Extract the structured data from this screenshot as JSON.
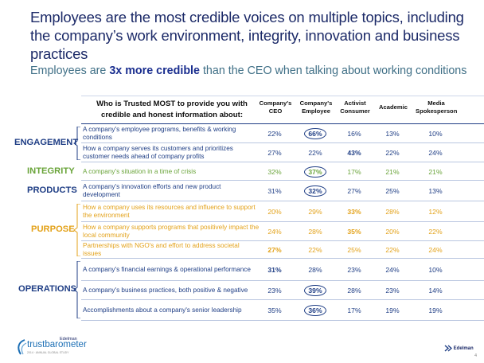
{
  "title": "Employees are the most credible voices on multiple topics, including the company’s work environment, integrity, innovation and business practices",
  "subtitle": {
    "before": "Employees are ",
    "highlight": "3x more credible",
    "after": " than the CEO when talking about working conditions"
  },
  "table": {
    "question": "Who is Trusted MOST to provide you with credible and honest information about:",
    "columns": [
      "Company's CEO",
      "Company's Employee",
      "Activist Consumer",
      "Academic",
      "Media Spokesperson"
    ],
    "rows": [
      {
        "topic": "A company's employee programs, benefits & working conditions",
        "values": [
          "22%",
          "66%",
          "16%",
          "13%",
          "10%"
        ],
        "circled": 1,
        "bold": [
          1
        ]
      },
      {
        "topic": "How a company serves its customers and prioritizes customer needs ahead of  company profits",
        "values": [
          "27%",
          "22%",
          "43%",
          "22%",
          "24%"
        ],
        "circled": -1,
        "bold": [
          2
        ]
      },
      {
        "topic": "A company's situation in a time of crisis",
        "values": [
          "32%",
          "37%",
          "17%",
          "21%",
          "21%"
        ],
        "circled": 1,
        "bold": [
          1
        ]
      },
      {
        "topic": "A company's innovation efforts and new product development",
        "values": [
          "31%",
          "32%",
          "27%",
          "25%",
          "13%"
        ],
        "circled": 1,
        "bold": [
          1
        ]
      },
      {
        "topic": "How a company uses its resources and influence to support the environment",
        "values": [
          "20%",
          "29%",
          "33%",
          "28%",
          "12%"
        ],
        "circled": -1,
        "bold": [
          2
        ]
      },
      {
        "topic": " How a company supports programs that positively impact the local community",
        "values": [
          "24%",
          "28%",
          "35%",
          "20%",
          "22%"
        ],
        "circled": -1,
        "bold": [
          2
        ]
      },
      {
        "topic": "Partnerships with NGO's and effort to address societal issues",
        "values": [
          "27%",
          "22%",
          "25%",
          "22%",
          "24%"
        ],
        "circled": -1,
        "bold": [
          0
        ]
      },
      {
        "topic": "A company's financial earnings & operational performance",
        "values": [
          "31%",
          "28%",
          "23%",
          "24%",
          "10%"
        ],
        "circled": -1,
        "bold": [
          0
        ]
      },
      {
        "topic": "A company's business practices, both positive & negative",
        "values": [
          "23%",
          "39%",
          "28%",
          "23%",
          "14%"
        ],
        "circled": 1,
        "bold": [
          1
        ]
      },
      {
        "topic": "Accomplishments about a company's senior leadership",
        "values": [
          "35%",
          "36%",
          "17%",
          "19%",
          "19%"
        ],
        "circled": 1,
        "bold": [
          1
        ]
      }
    ]
  },
  "groups": [
    {
      "label": "ENGAGEMENT",
      "color": "#1f3e85"
    },
    {
      "label": "INTEGRITY",
      "color": "#6aa43a"
    },
    {
      "label": "PRODUCTS",
      "color": "#1f3e85"
    },
    {
      "label": "PURPOSE",
      "color": "#e3a21a"
    },
    {
      "label": "OPERATIONS",
      "color": "#1f3e85"
    }
  ],
  "footer": {
    "logo_small": "Edelman",
    "logo_main": "trustbarometer",
    "logo_tag": "2014 · ANNUAL GLOBAL STUDY",
    "brand_mark": "Edelman",
    "page": "4"
  }
}
